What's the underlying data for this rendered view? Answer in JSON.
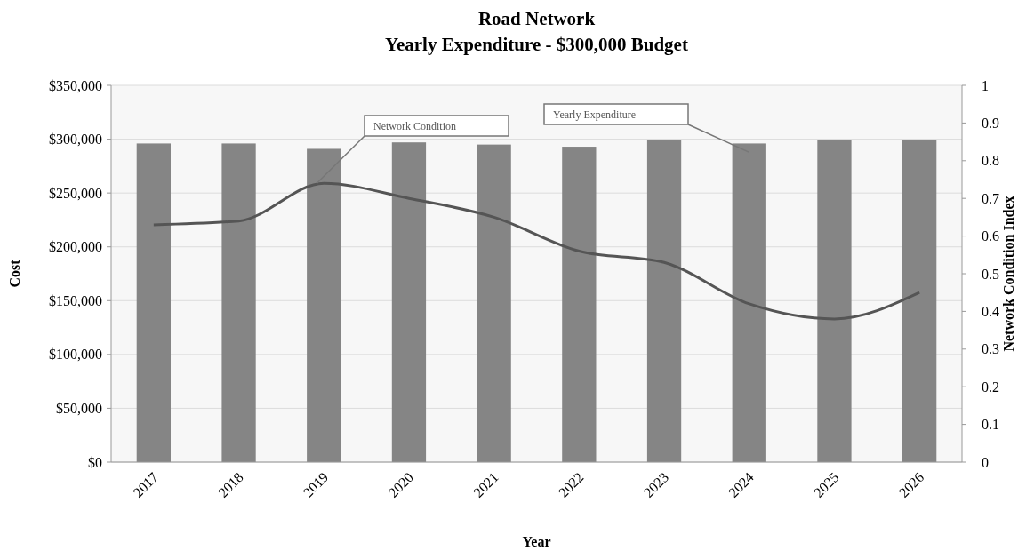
{
  "chart_data": {
    "type": "bar",
    "title": "Road Network",
    "subtitle": "Yearly Expenditure - $300,000 Budget",
    "xlabel": "Year",
    "ylabel": "Cost",
    "y2label": "Network Condition Index",
    "categories": [
      "2017",
      "2018",
      "2019",
      "2020",
      "2021",
      "2022",
      "2023",
      "2024",
      "2025",
      "2026"
    ],
    "series": [
      {
        "name": "Yearly Expenditure",
        "color": "#858585",
        "values": [
          296000,
          296000,
          291000,
          297000,
          295000,
          293000,
          299000,
          296000,
          299000,
          299000
        ]
      },
      {
        "name": "Network Condition",
        "type": "line",
        "axis": "y2",
        "color": "#555555",
        "values": [
          0.63,
          0.64,
          0.74,
          0.7,
          0.65,
          0.56,
          0.53,
          0.42,
          0.38,
          0.45
        ]
      }
    ],
    "ylim": [
      0,
      350000
    ],
    "yticks": [
      {
        "value": 0,
        "label": "$0"
      },
      {
        "value": 50000,
        "label": "$50,000"
      },
      {
        "value": 100000,
        "label": "$100,000"
      },
      {
        "value": 150000,
        "label": "$150,000"
      },
      {
        "value": 200000,
        "label": "$200,000"
      },
      {
        "value": 250000,
        "label": "$250,000"
      },
      {
        "value": 300000,
        "label": "$300,000"
      },
      {
        "value": 350000,
        "label": "$350,000"
      }
    ],
    "y2lim": [
      0,
      1
    ],
    "y2ticks": [
      0,
      0.1,
      0.2,
      0.3,
      0.4,
      0.5,
      0.6,
      0.7,
      0.8,
      0.9,
      1
    ],
    "grid": "y",
    "legend": false
  }
}
